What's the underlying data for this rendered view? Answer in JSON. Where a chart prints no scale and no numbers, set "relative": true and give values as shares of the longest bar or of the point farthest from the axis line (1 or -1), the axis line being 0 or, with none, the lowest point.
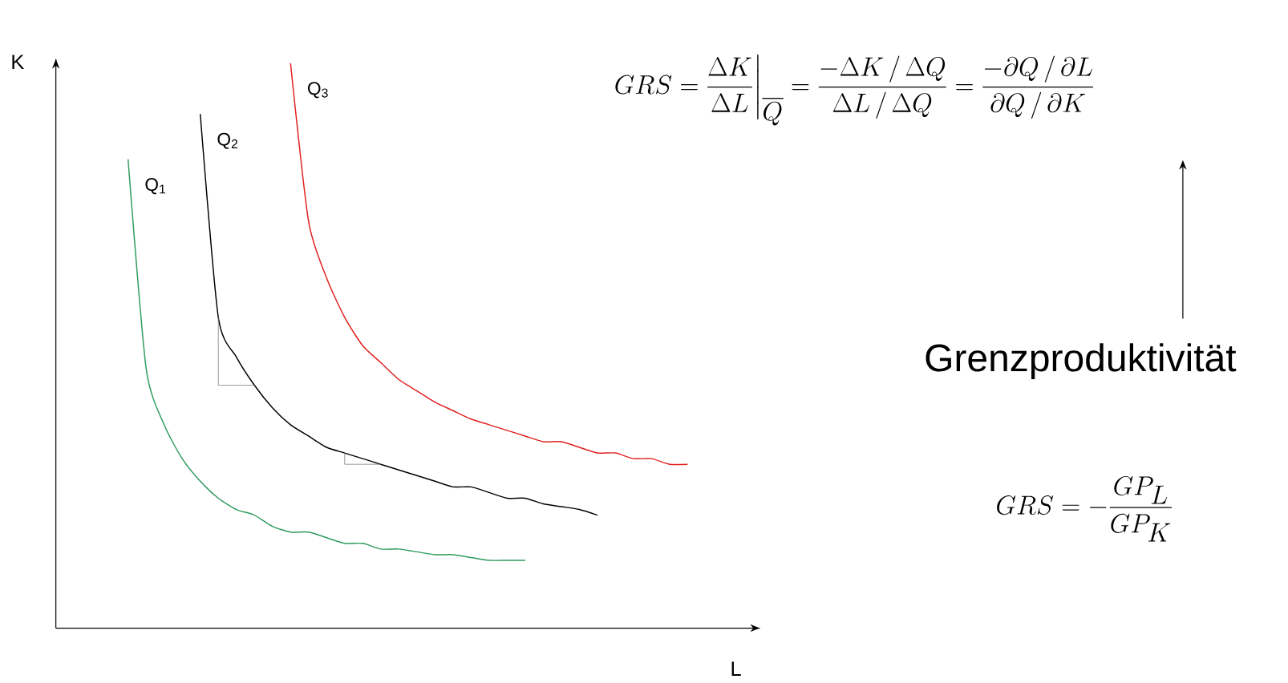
{
  "chart_data": {
    "type": "line",
    "relative": true,
    "marker": "none",
    "xlabel": "L",
    "ylabel": "K",
    "categories": [
      null,
      null,
      null,
      null,
      null,
      null,
      null,
      null,
      null,
      null,
      null,
      null,
      null,
      null,
      null,
      null,
      null,
      null,
      null,
      null,
      null,
      null,
      null,
      null,
      null,
      null,
      null,
      null,
      null,
      null,
      null,
      null
    ],
    "series": [
      {
        "name": "Q$_{1}$",
        "color": "#2e9a5c",
        "values": [
          0.83,
          0.46,
          0.36,
          0.3,
          0.26,
          0.23,
          0.21,
          0.2,
          0.18,
          0.17,
          0.17,
          0.16,
          0.15,
          0.15,
          0.14,
          0.14,
          0.135,
          0.13,
          0.13,
          0.125,
          0.12,
          0.12,
          0.12,
          null,
          null,
          null,
          null,
          null,
          null,
          null,
          null,
          null
        ]
      },
      {
        "name": "Q$_{2}$",
        "color": "#000000",
        "values": [
          null,
          null,
          null,
          null,
          0.91,
          0.55,
          0.48,
          0.43,
          0.39,
          0.36,
          0.34,
          0.32,
          0.31,
          0.3,
          0.29,
          0.28,
          0.27,
          0.26,
          0.25,
          0.25,
          0.24,
          0.23,
          0.23,
          0.22,
          0.215,
          0.21,
          0.2,
          null,
          null,
          null,
          null,
          null
        ]
      },
      {
        "name": "Q$_{3}$",
        "color": "#e0201e",
        "values": [
          null,
          null,
          null,
          null,
          null,
          null,
          null,
          null,
          null,
          1.0,
          0.72,
          0.62,
          0.55,
          0.5,
          0.47,
          0.44,
          0.42,
          0.4,
          0.385,
          0.37,
          0.36,
          0.35,
          0.34,
          0.33,
          0.33,
          0.32,
          0.31,
          0.31,
          0.3,
          0.3,
          0.29,
          0.29
        ]
      }
    ],
    "annotations": [
      "GRS = \\frac{\\Delta K}{\\Delta L}\\bigg|_{\\overline{Q}} = \\frac{-\\Delta K\\,/\\,\\Delta Q}{\\Delta L\\,/\\,\\Delta Q} = \\frac{-\\partial Q\\,/\\,\\partial L}{\\partial Q\\,/\\,\\partial K}",
      "Grenzproduktivität",
      "GRS = -\\frac{GP_{L}}{GP_{K}}"
    ]
  }
}
